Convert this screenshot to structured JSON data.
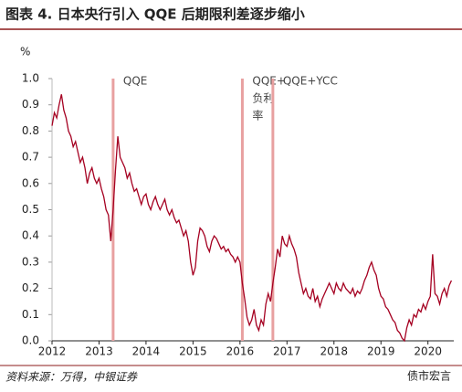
{
  "chart_data": {
    "type": "line",
    "title": "图表 4. 日本央行引入 QQE 后期限利差逐步缩小",
    "y_unit": "%",
    "source": "资料来源：万得，中银证券",
    "watermark": "债市宏言",
    "xlim": [
      2012,
      2020.55
    ],
    "xticks": [
      2012,
      2013,
      2014,
      2015,
      2016,
      2017,
      2018,
      2019,
      2020
    ],
    "ylim": [
      0,
      1
    ],
    "yticks": [
      {
        "value": 0,
        "label": "0.0"
      },
      0.1,
      0.2,
      0.3,
      0.4,
      0.5,
      0.6,
      0.7,
      0.8,
      0.9,
      {
        "value": 1,
        "label": "1.0"
      }
    ],
    "events": [
      {
        "x": 2013.3,
        "color": "#e8a0a0",
        "label_lines": [
          "QQE"
        ]
      },
      {
        "x": 2016.05,
        "color": "#e8a0a0",
        "label_lines": [
          "QQE+",
          "负利",
          "率"
        ]
      },
      {
        "x": 2016.7,
        "color": "#e8a0a0",
        "label_lines": [
          "QQE+YCC"
        ]
      }
    ],
    "x": [
      2012,
      2012.05,
      2012.1,
      2012.15,
      2012.2,
      2012.25,
      2012.3,
      2012.35,
      2012.4,
      2012.45,
      2012.5,
      2012.55,
      2012.6,
      2012.65,
      2012.7,
      2012.75,
      2012.8,
      2012.85,
      2012.9,
      2012.95,
      2013,
      2013.05,
      2013.1,
      2013.15,
      2013.2,
      2013.25,
      2013.3,
      2013.35,
      2013.4,
      2013.45,
      2013.5,
      2013.55,
      2013.6,
      2013.65,
      2013.7,
      2013.75,
      2013.8,
      2013.85,
      2013.9,
      2013.95,
      2014,
      2014.05,
      2014.1,
      2014.15,
      2014.2,
      2014.25,
      2014.3,
      2014.35,
      2014.4,
      2014.45,
      2014.5,
      2014.55,
      2014.6,
      2014.65,
      2014.7,
      2014.75,
      2014.8,
      2014.85,
      2014.9,
      2014.95,
      2015,
      2015.05,
      2015.1,
      2015.15,
      2015.2,
      2015.25,
      2015.3,
      2015.35,
      2015.4,
      2015.45,
      2015.5,
      2015.55,
      2015.6,
      2015.65,
      2015.7,
      2015.75,
      2015.8,
      2015.85,
      2015.9,
      2015.95,
      2016,
      2016.05,
      2016.1,
      2016.15,
      2016.2,
      2016.25,
      2016.3,
      2016.35,
      2016.4,
      2016.45,
      2016.5,
      2016.55,
      2016.6,
      2016.65,
      2016.7,
      2016.75,
      2016.8,
      2016.85,
      2016.9,
      2016.95,
      2017,
      2017.05,
      2017.1,
      2017.15,
      2017.2,
      2017.25,
      2017.3,
      2017.35,
      2017.4,
      2017.45,
      2017.5,
      2017.55,
      2017.6,
      2017.65,
      2017.7,
      2017.75,
      2017.8,
      2017.85,
      2017.9,
      2017.95,
      2018,
      2018.05,
      2018.1,
      2018.15,
      2018.2,
      2018.25,
      2018.3,
      2018.35,
      2018.4,
      2018.45,
      2018.5,
      2018.55,
      2018.6,
      2018.65,
      2018.7,
      2018.75,
      2018.8,
      2018.85,
      2018.9,
      2018.95,
      2019,
      2019.05,
      2019.1,
      2019.15,
      2019.2,
      2019.25,
      2019.3,
      2019.35,
      2019.4,
      2019.45,
      2019.5,
      2019.55,
      2019.6,
      2019.65,
      2019.7,
      2019.75,
      2019.8,
      2019.85,
      2019.9,
      2019.95,
      2020,
      2020.05,
      2020.1,
      2020.15,
      2020.2,
      2020.25,
      2020.3,
      2020.35,
      2020.4,
      2020.45,
      2020.5
    ],
    "series": [
      {
        "color": "#a50021",
        "values": [
          0.82,
          0.87,
          0.85,
          0.9,
          0.94,
          0.88,
          0.85,
          0.8,
          0.78,
          0.74,
          0.76,
          0.72,
          0.68,
          0.7,
          0.66,
          0.6,
          0.64,
          0.66,
          0.62,
          0.6,
          0.62,
          0.58,
          0.55,
          0.5,
          0.48,
          0.38,
          0.5,
          0.65,
          0.78,
          0.7,
          0.68,
          0.66,
          0.62,
          0.64,
          0.6,
          0.57,
          0.58,
          0.55,
          0.52,
          0.55,
          0.56,
          0.52,
          0.5,
          0.53,
          0.55,
          0.52,
          0.5,
          0.52,
          0.54,
          0.5,
          0.48,
          0.5,
          0.47,
          0.45,
          0.46,
          0.43,
          0.4,
          0.42,
          0.38,
          0.3,
          0.25,
          0.28,
          0.38,
          0.43,
          0.42,
          0.4,
          0.36,
          0.34,
          0.38,
          0.4,
          0.39,
          0.37,
          0.35,
          0.36,
          0.34,
          0.35,
          0.33,
          0.32,
          0.3,
          0.32,
          0.3,
          0.22,
          0.16,
          0.09,
          0.06,
          0.08,
          0.12,
          0.06,
          0.04,
          0.08,
          0.06,
          0.14,
          0.18,
          0.15,
          0.22,
          0.28,
          0.35,
          0.32,
          0.4,
          0.37,
          0.36,
          0.4,
          0.37,
          0.35,
          0.32,
          0.26,
          0.22,
          0.18,
          0.2,
          0.17,
          0.16,
          0.2,
          0.15,
          0.17,
          0.13,
          0.16,
          0.18,
          0.2,
          0.22,
          0.2,
          0.18,
          0.22,
          0.2,
          0.19,
          0.22,
          0.2,
          0.19,
          0.18,
          0.2,
          0.17,
          0.19,
          0.18,
          0.2,
          0.23,
          0.25,
          0.28,
          0.3,
          0.27,
          0.25,
          0.2,
          0.17,
          0.16,
          0.13,
          0.12,
          0.1,
          0.08,
          0.07,
          0.04,
          0.03,
          0.01,
          0,
          0.05,
          0.08,
          0.06,
          0.1,
          0.09,
          0.12,
          0.11,
          0.14,
          0.12,
          0.15,
          0.17,
          0.33,
          0.18,
          0.17,
          0.14,
          0.18,
          0.2,
          0.17,
          0.21,
          0.23
        ]
      }
    ]
  }
}
